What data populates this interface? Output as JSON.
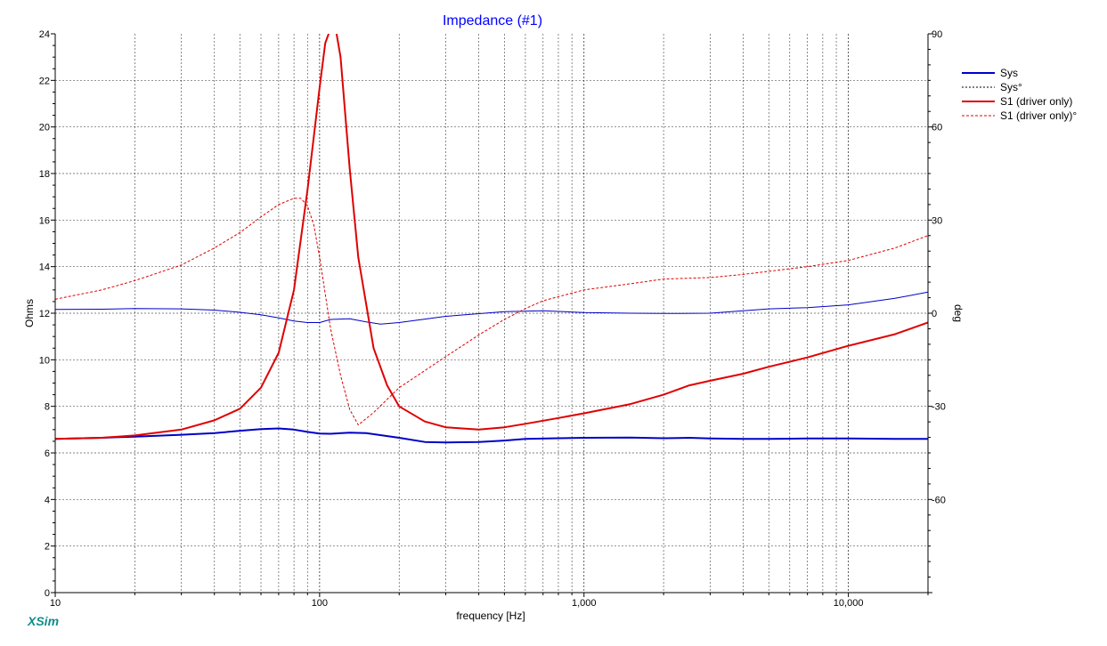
{
  "app": {
    "logo": "XSim"
  },
  "chart_data": {
    "type": "line",
    "title": "Impedance (#1)",
    "xlabel": "frequency [Hz]",
    "ylabel": "Ohms",
    "y2label": "deg",
    "xscale": "log",
    "xlim": [
      10,
      20000
    ],
    "ylim": [
      0,
      24
    ],
    "y2lim": [
      -90,
      90
    ],
    "grid": true,
    "legend_position": "right",
    "x_ticks": [
      {
        "value": 10,
        "label": "10"
      },
      {
        "value": 100,
        "label": "100"
      },
      {
        "value": 1000,
        "label": "1,000"
      },
      {
        "value": 10000,
        "label": "10,000"
      }
    ],
    "y_ticks": [
      {
        "value": 0,
        "label": "0"
      },
      {
        "value": 2,
        "label": "2"
      },
      {
        "value": 4,
        "label": "4"
      },
      {
        "value": 6,
        "label": "6"
      },
      {
        "value": 8,
        "label": "8"
      },
      {
        "value": 10,
        "label": "10"
      },
      {
        "value": 12,
        "label": "12"
      },
      {
        "value": 14,
        "label": "14"
      },
      {
        "value": 16,
        "label": "16"
      },
      {
        "value": 18,
        "label": "18"
      },
      {
        "value": 20,
        "label": "20"
      },
      {
        "value": 22,
        "label": "22"
      },
      {
        "value": 24,
        "label": "24"
      }
    ],
    "y2_ticks": [
      {
        "value": 90,
        "label": "90"
      },
      {
        "value": 60,
        "label": "60"
      },
      {
        "value": 30,
        "label": "30"
      },
      {
        "value": 0,
        "label": "0"
      },
      {
        "value": -30,
        "label": "-30"
      },
      {
        "value": -60,
        "label": "-60"
      }
    ],
    "series": [
      {
        "name": "Sys",
        "axis": "left",
        "color": "#0000c8",
        "style": "solid",
        "width": 2,
        "points": [
          [
            10,
            6.6
          ],
          [
            15,
            6.65
          ],
          [
            20,
            6.7
          ],
          [
            30,
            6.78
          ],
          [
            40,
            6.85
          ],
          [
            50,
            6.95
          ],
          [
            60,
            7.02
          ],
          [
            70,
            7.05
          ],
          [
            80,
            7.0
          ],
          [
            90,
            6.9
          ],
          [
            100,
            6.83
          ],
          [
            110,
            6.82
          ],
          [
            130,
            6.87
          ],
          [
            150,
            6.85
          ],
          [
            200,
            6.65
          ],
          [
            250,
            6.47
          ],
          [
            300,
            6.45
          ],
          [
            400,
            6.47
          ],
          [
            500,
            6.53
          ],
          [
            600,
            6.6
          ],
          [
            800,
            6.63
          ],
          [
            1000,
            6.65
          ],
          [
            1500,
            6.66
          ],
          [
            2000,
            6.63
          ],
          [
            2500,
            6.65
          ],
          [
            3000,
            6.62
          ],
          [
            4000,
            6.6
          ],
          [
            5000,
            6.6
          ],
          [
            7000,
            6.62
          ],
          [
            10000,
            6.62
          ],
          [
            15000,
            6.6
          ],
          [
            20000,
            6.6
          ]
        ]
      },
      {
        "name": "Sys°",
        "axis": "right",
        "color": "#0000c8",
        "style": "solid",
        "width": 1,
        "points": [
          [
            10,
            1.2
          ],
          [
            15,
            1.3
          ],
          [
            20,
            1.5
          ],
          [
            30,
            1.4
          ],
          [
            40,
            1.0
          ],
          [
            50,
            0.3
          ],
          [
            60,
            -0.5
          ],
          [
            70,
            -1.5
          ],
          [
            80,
            -2.5
          ],
          [
            90,
            -3.0
          ],
          [
            100,
            -3.0
          ],
          [
            110,
            -2.0
          ],
          [
            130,
            -1.8
          ],
          [
            150,
            -2.8
          ],
          [
            170,
            -3.5
          ],
          [
            200,
            -3.0
          ],
          [
            300,
            -1.0
          ],
          [
            500,
            0.5
          ],
          [
            700,
            0.8
          ],
          [
            1000,
            0.2
          ],
          [
            1500,
            0.0
          ],
          [
            2000,
            -0.1
          ],
          [
            3000,
            0.0
          ],
          [
            4000,
            0.8
          ],
          [
            5000,
            1.4
          ],
          [
            7000,
            1.8
          ],
          [
            10000,
            2.7
          ],
          [
            15000,
            4.8
          ],
          [
            20000,
            6.8
          ]
        ]
      },
      {
        "name": "S1 (driver only)",
        "axis": "left",
        "color": "#e00000",
        "style": "solid",
        "width": 2,
        "points": [
          [
            10,
            6.6
          ],
          [
            15,
            6.65
          ],
          [
            20,
            6.75
          ],
          [
            30,
            7.0
          ],
          [
            40,
            7.4
          ],
          [
            50,
            7.9
          ],
          [
            60,
            8.8
          ],
          [
            70,
            10.3
          ],
          [
            80,
            13.0
          ],
          [
            90,
            17.3
          ],
          [
            100,
            21.7
          ],
          [
            105,
            23.6
          ],
          [
            110,
            24.5
          ],
          [
            115,
            24.5
          ],
          [
            120,
            23.0
          ],
          [
            130,
            18.2
          ],
          [
            140,
            14.4
          ],
          [
            160,
            10.5
          ],
          [
            180,
            8.9
          ],
          [
            200,
            8.0
          ],
          [
            250,
            7.35
          ],
          [
            300,
            7.1
          ],
          [
            400,
            7.0
          ],
          [
            500,
            7.1
          ],
          [
            600,
            7.25
          ],
          [
            800,
            7.5
          ],
          [
            1000,
            7.7
          ],
          [
            1500,
            8.1
          ],
          [
            2000,
            8.5
          ],
          [
            2500,
            8.9
          ],
          [
            3000,
            9.1
          ],
          [
            4000,
            9.4
          ],
          [
            5000,
            9.7
          ],
          [
            7000,
            10.1
          ],
          [
            10000,
            10.6
          ],
          [
            15000,
            11.1
          ],
          [
            20000,
            11.6
          ]
        ]
      },
      {
        "name": "S1 (driver only)°",
        "axis": "right",
        "color": "#e00000",
        "style": "dashed",
        "width": 1,
        "points": [
          [
            10,
            4.5
          ],
          [
            15,
            7.5
          ],
          [
            20,
            10.5
          ],
          [
            30,
            15.5
          ],
          [
            40,
            21.0
          ],
          [
            50,
            26.0
          ],
          [
            60,
            31.0
          ],
          [
            70,
            35.0
          ],
          [
            80,
            37.0
          ],
          [
            85,
            37.0
          ],
          [
            90,
            34.5
          ],
          [
            95,
            28.5
          ],
          [
            100,
            18.0
          ],
          [
            110,
            -5.0
          ],
          [
            120,
            -20.0
          ],
          [
            130,
            -31.0
          ],
          [
            140,
            -36.0
          ],
          [
            160,
            -32.0
          ],
          [
            200,
            -24.0
          ],
          [
            300,
            -14.0
          ],
          [
            400,
            -7.0
          ],
          [
            500,
            -2.0
          ],
          [
            600,
            1.5
          ],
          [
            700,
            4.0
          ],
          [
            1000,
            7.5
          ],
          [
            1500,
            9.5
          ],
          [
            2000,
            11.0
          ],
          [
            3000,
            11.5
          ],
          [
            4000,
            12.5
          ],
          [
            5000,
            13.5
          ],
          [
            7000,
            15.0
          ],
          [
            10000,
            17.0
          ],
          [
            15000,
            21.0
          ],
          [
            20000,
            25.0
          ]
        ]
      }
    ]
  }
}
